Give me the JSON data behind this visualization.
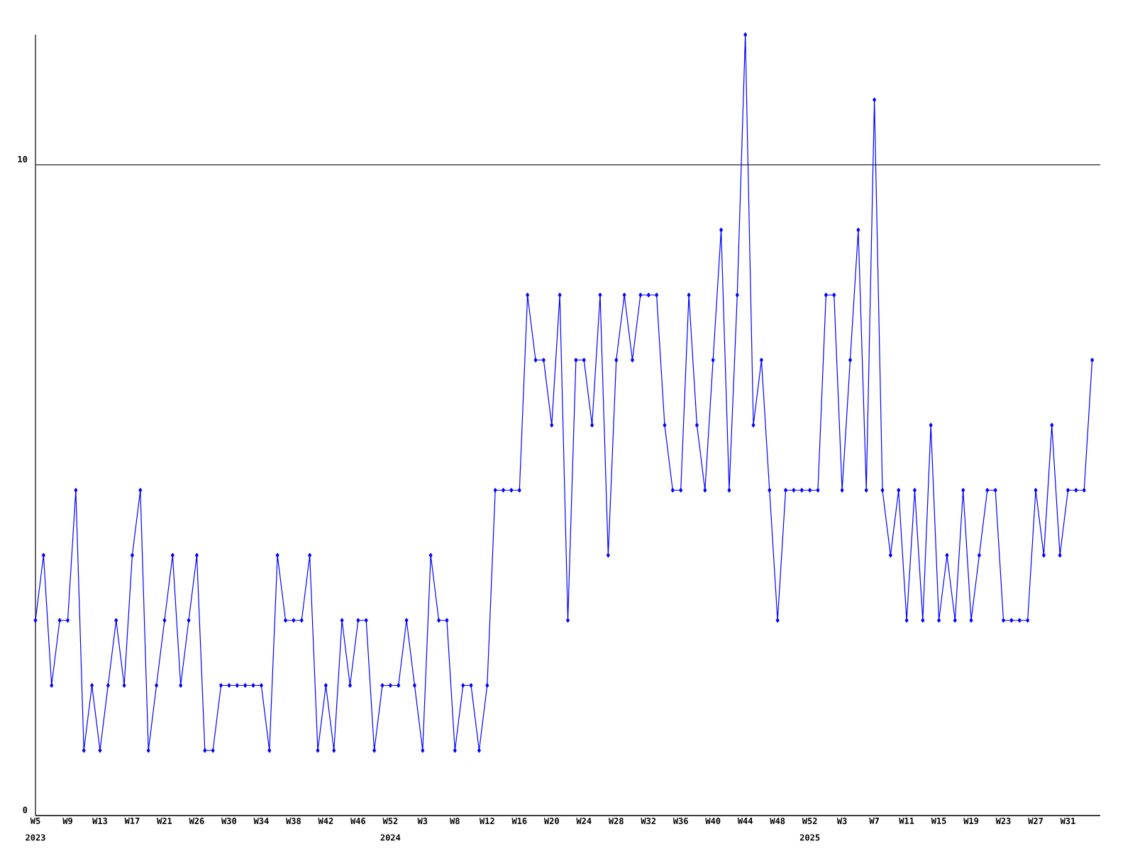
{
  "chart_data": {
    "type": "line",
    "categories": [
      "W5",
      null,
      null,
      null,
      "W9",
      null,
      null,
      null,
      "W13",
      null,
      null,
      null,
      "W17",
      null,
      null,
      null,
      "W21",
      null,
      null,
      null,
      "W26",
      null,
      null,
      null,
      "W30",
      null,
      null,
      null,
      "W34",
      null,
      null,
      null,
      "W38",
      null,
      null,
      null,
      "W42",
      null,
      null,
      null,
      "W46",
      null,
      null,
      null,
      "W52",
      null,
      null,
      null,
      "W3",
      null,
      null,
      null,
      "W8",
      null,
      null,
      null,
      "W12",
      null,
      null,
      null,
      "W16",
      null,
      null,
      null,
      "W20",
      null,
      null,
      null,
      "W24",
      null,
      null,
      null,
      "W28",
      null,
      null,
      null,
      "W32",
      null,
      null,
      null,
      "W36",
      null,
      null,
      null,
      "W40",
      null,
      null,
      null,
      "W44",
      null,
      null,
      null,
      "W48",
      null,
      null,
      null,
      "W52",
      null,
      null,
      null,
      "W3",
      null,
      null,
      null,
      "W7",
      null,
      null,
      null,
      "W11",
      null,
      null,
      null,
      "W15",
      null,
      null,
      null,
      "W19",
      null,
      null,
      null,
      "W23",
      null,
      null,
      null,
      "W27",
      null,
      null,
      null,
      "W31",
      null,
      null,
      null
    ],
    "values": [
      3,
      4,
      2,
      3,
      3,
      5,
      1,
      2,
      1,
      2,
      3,
      2,
      4,
      5,
      1,
      2,
      3,
      4,
      2,
      3,
      4,
      1,
      1,
      2,
      2,
      2,
      2,
      2,
      2,
      1,
      4,
      3,
      3,
      3,
      4,
      1,
      2,
      1,
      3,
      2,
      3,
      3,
      1,
      2,
      2,
      2,
      3,
      2,
      1,
      4,
      3,
      3,
      1,
      2,
      2,
      1,
      2,
      5,
      5,
      5,
      5,
      8,
      7,
      7,
      6,
      8,
      3,
      7,
      7,
      6,
      8,
      4,
      7,
      8,
      7,
      8,
      8,
      8,
      6,
      5,
      5,
      8,
      6,
      5,
      7,
      9,
      5,
      8,
      12,
      6,
      7,
      5,
      3,
      5,
      5,
      5,
      5,
      5,
      8,
      8,
      5,
      7,
      9,
      5,
      11,
      5,
      4,
      5,
      3,
      5,
      3,
      6,
      3,
      4,
      3,
      5,
      3,
      4,
      5,
      5,
      3,
      3,
      3,
      3,
      5,
      4,
      6,
      4,
      5,
      5,
      5,
      7
    ],
    "color": "#0000ff",
    "marker": "diamond",
    "line_style": "solid",
    "ylim": [
      0,
      12
    ],
    "yticks": [
      0,
      10
    ],
    "grid": "y",
    "annotations": [
      "2023",
      "2024",
      "2025"
    ]
  }
}
